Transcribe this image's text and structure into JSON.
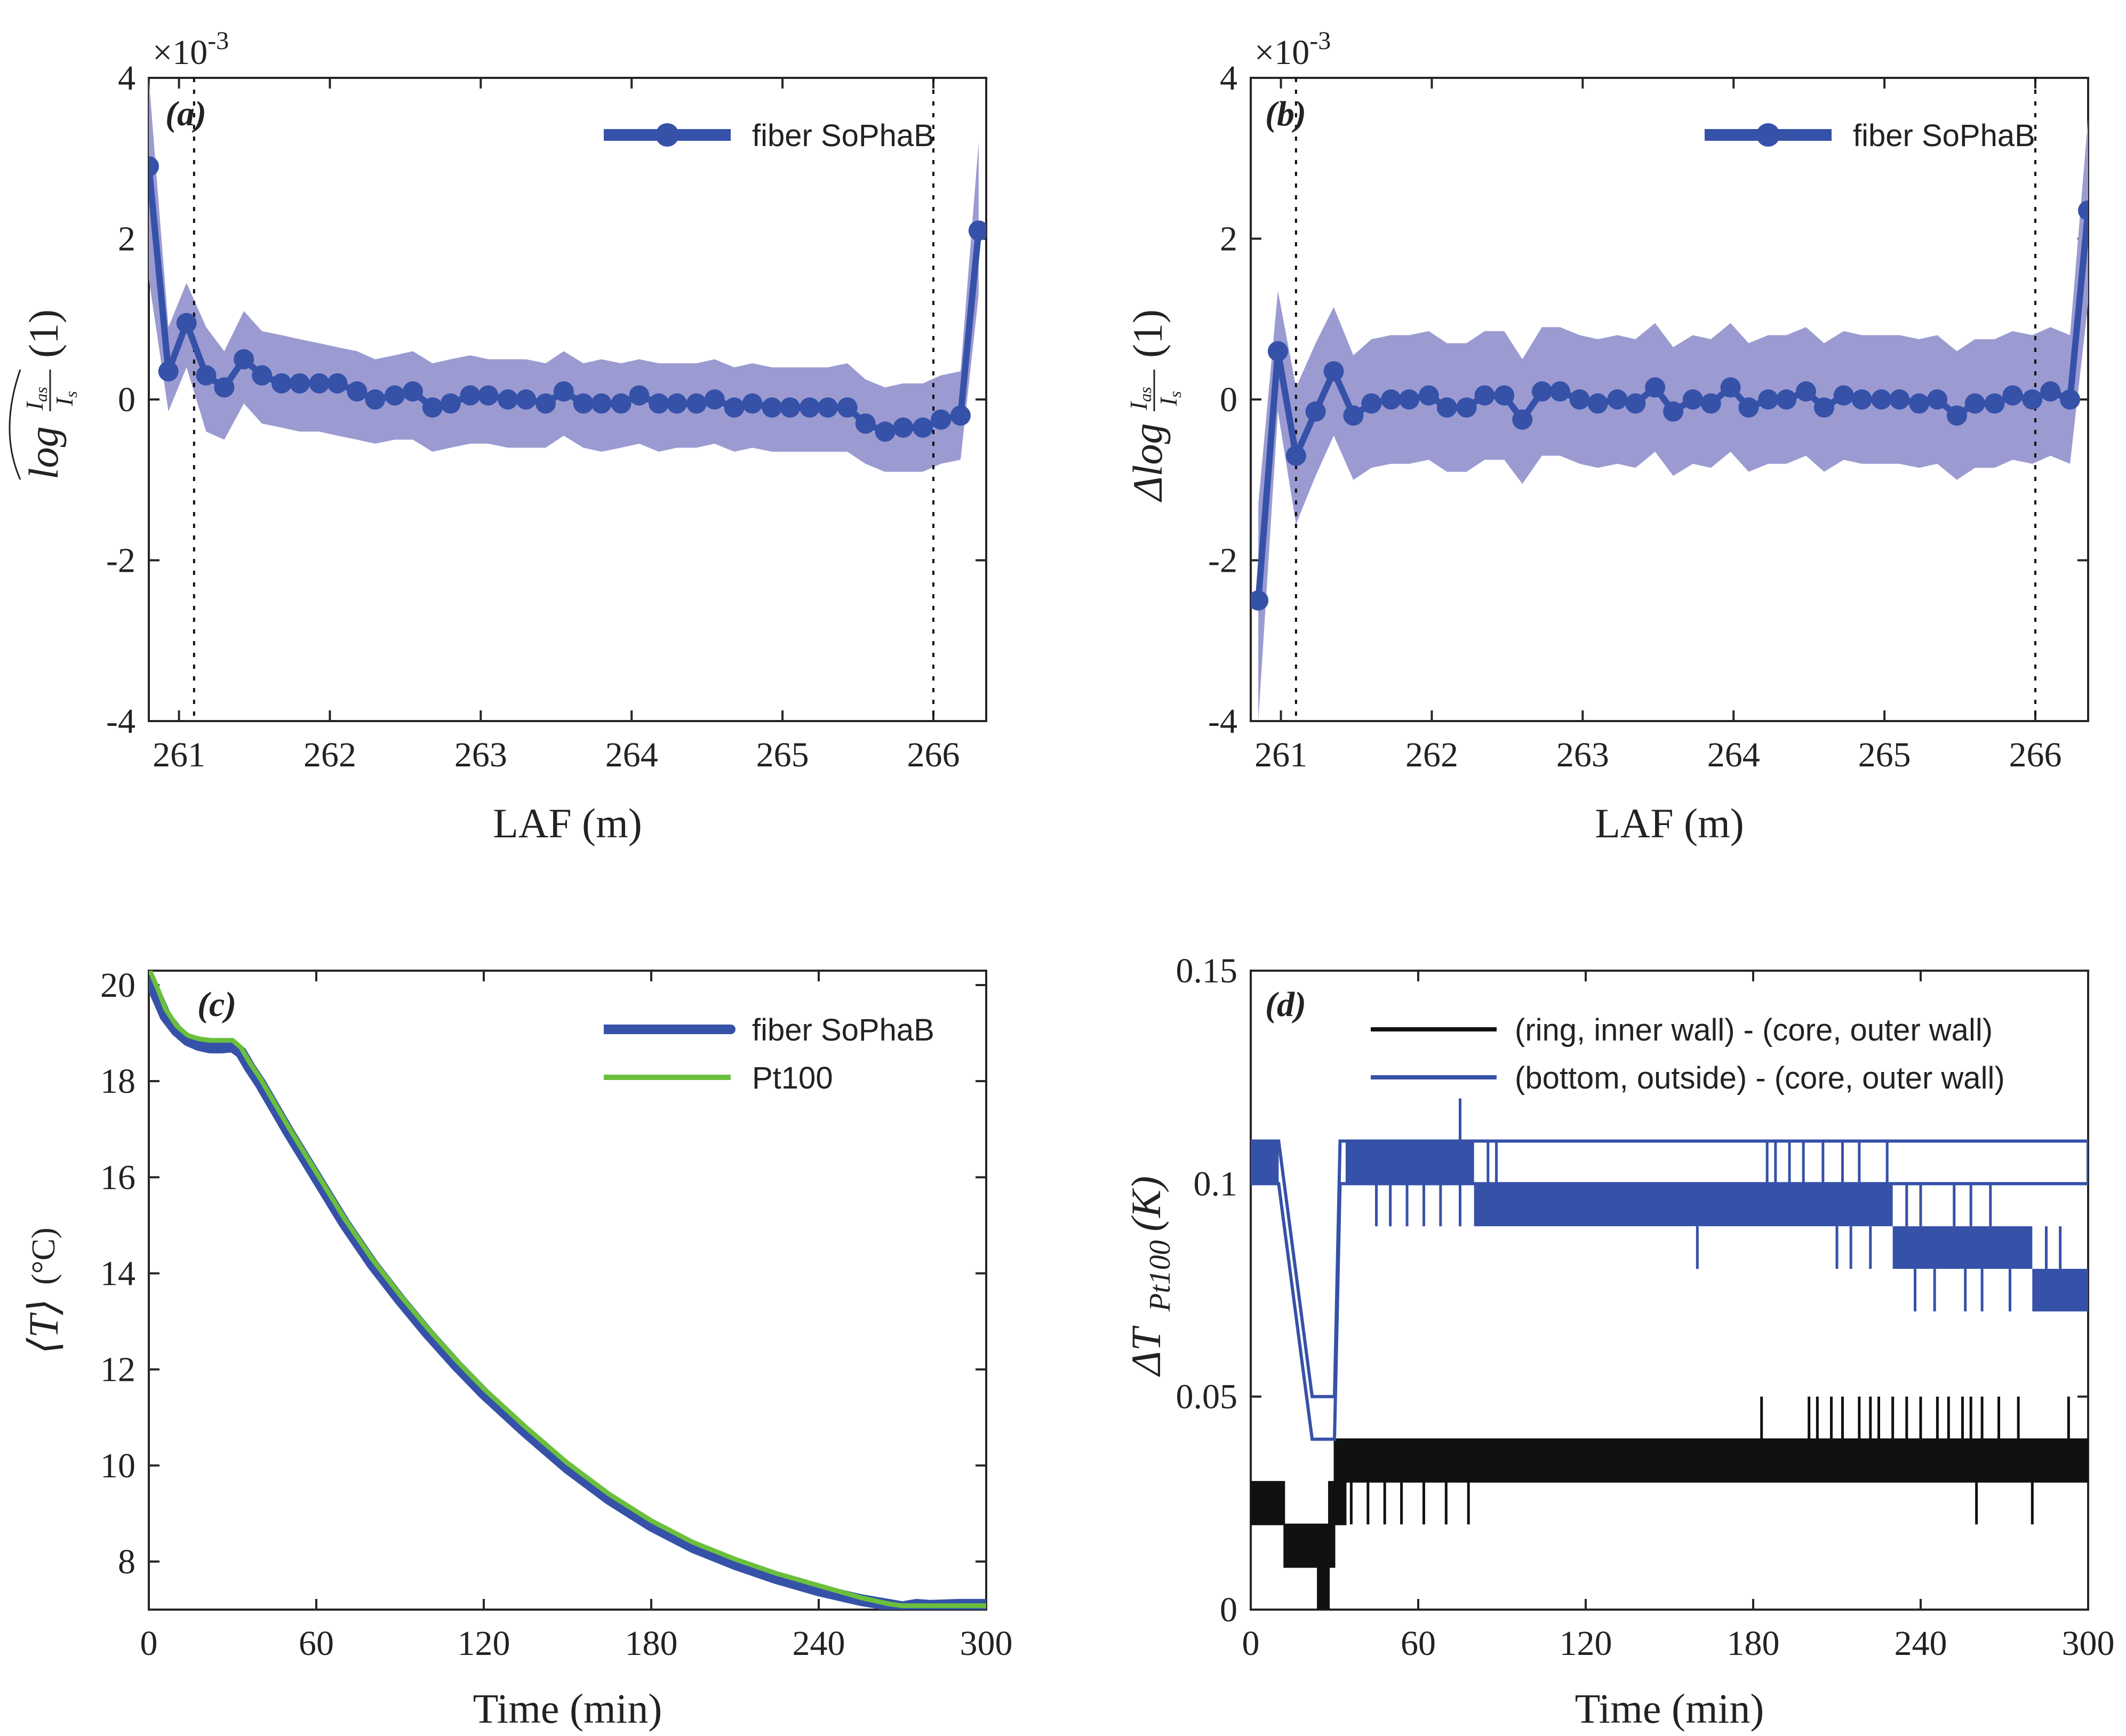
{
  "colors": {
    "fiber": "#3651a8",
    "band": "#9b9bd2",
    "pt100": "#6abf3c",
    "black": "#111111",
    "axis": "#262626"
  },
  "chart_data": [
    {
      "id": "a",
      "type": "line",
      "panel_label": "(a)",
      "xlabel": "LAF (m)",
      "ylabel": "log(I_as / I_s) (1)",
      "ylabel_parts": {
        "base": "log",
        "num": "I",
        "num_sub": "as",
        "den": "I",
        "den_sub": "s",
        "unit": "(1)"
      },
      "exponent_label": "×10",
      "exponent_power": "-3",
      "xlim": [
        260.8,
        266.35
      ],
      "ylim": [
        -4,
        4
      ],
      "xticks": [
        "261",
        "262",
        "263",
        "264",
        "265",
        "266"
      ],
      "yticks": [
        "-4",
        "-2",
        "0",
        "2",
        "4"
      ],
      "vlines": [
        261.1,
        266.0
      ],
      "legend": [
        "fiber SoPhaB"
      ],
      "series": [
        {
          "name": "fiber SoPhaB",
          "x": [
            260.8,
            260.93,
            261.05,
            261.18,
            261.3,
            261.43,
            261.55,
            261.68,
            261.8,
            261.93,
            262.05,
            262.18,
            262.3,
            262.43,
            262.55,
            262.68,
            262.8,
            262.93,
            263.05,
            263.18,
            263.3,
            263.43,
            263.55,
            263.68,
            263.8,
            263.93,
            264.05,
            264.18,
            264.3,
            264.43,
            264.55,
            264.68,
            264.8,
            264.93,
            265.05,
            265.18,
            265.3,
            265.43,
            265.55,
            265.68,
            265.8,
            265.93,
            266.05,
            266.18,
            266.3
          ],
          "values": [
            2.9,
            0.35,
            0.95,
            0.3,
            0.15,
            0.5,
            0.3,
            0.2,
            0.2,
            0.2,
            0.2,
            0.1,
            0.0,
            0.05,
            0.1,
            -0.1,
            -0.05,
            0.05,
            0.05,
            0.0,
            0.0,
            -0.05,
            0.1,
            -0.05,
            -0.05,
            -0.05,
            0.05,
            -0.05,
            -0.05,
            -0.05,
            0.0,
            -0.1,
            -0.05,
            -0.1,
            -0.1,
            -0.1,
            -0.1,
            -0.1,
            -0.3,
            -0.4,
            -0.35,
            -0.35,
            -0.25,
            -0.2,
            2.1
          ],
          "upper": [
            4.0,
            0.9,
            1.45,
            0.9,
            0.6,
            1.1,
            0.85,
            0.8,
            0.75,
            0.7,
            0.65,
            0.6,
            0.5,
            0.55,
            0.6,
            0.45,
            0.5,
            0.55,
            0.5,
            0.5,
            0.5,
            0.45,
            0.6,
            0.45,
            0.5,
            0.45,
            0.5,
            0.45,
            0.45,
            0.45,
            0.5,
            0.4,
            0.45,
            0.4,
            0.4,
            0.4,
            0.4,
            0.45,
            0.25,
            0.15,
            0.2,
            0.2,
            0.3,
            0.35,
            3.2
          ],
          "lower": [
            1.5,
            -0.15,
            0.4,
            -0.4,
            -0.5,
            -0.05,
            -0.3,
            -0.35,
            -0.4,
            -0.4,
            -0.45,
            -0.5,
            -0.55,
            -0.5,
            -0.5,
            -0.65,
            -0.6,
            -0.55,
            -0.55,
            -0.6,
            -0.6,
            -0.6,
            -0.45,
            -0.6,
            -0.65,
            -0.6,
            -0.55,
            -0.65,
            -0.6,
            -0.6,
            -0.55,
            -0.65,
            -0.6,
            -0.65,
            -0.65,
            -0.65,
            -0.65,
            -0.65,
            -0.8,
            -0.9,
            -0.9,
            -0.9,
            -0.8,
            -0.75,
            1.3
          ]
        }
      ]
    },
    {
      "id": "b",
      "type": "line",
      "panel_label": "(b)",
      "xlabel": "LAF (m)",
      "ylabel": "Δlog(I_as / I_s) (1)",
      "ylabel_parts": {
        "base": "Δlog",
        "num": "I",
        "num_sub": "as",
        "den": "I",
        "den_sub": "s",
        "unit": "(1)"
      },
      "exponent_label": "×10",
      "exponent_power": "-3",
      "xlim": [
        260.8,
        266.35
      ],
      "ylim": [
        -4,
        4
      ],
      "xticks": [
        "261",
        "262",
        "263",
        "264",
        "265",
        "266"
      ],
      "yticks": [
        "-4",
        "-2",
        "0",
        "2",
        "4"
      ],
      "vlines": [
        261.1,
        266.0
      ],
      "legend": [
        "fiber SoPhaB"
      ],
      "series": [
        {
          "name": "fiber SoPhaB",
          "x": [
            260.85,
            260.98,
            261.1,
            261.23,
            261.35,
            261.48,
            261.6,
            261.73,
            261.85,
            261.98,
            262.1,
            262.23,
            262.35,
            262.48,
            262.6,
            262.73,
            262.85,
            262.98,
            263.1,
            263.23,
            263.35,
            263.48,
            263.6,
            263.73,
            263.85,
            263.98,
            264.1,
            264.23,
            264.35,
            264.48,
            264.6,
            264.73,
            264.85,
            264.98,
            265.1,
            265.23,
            265.35,
            265.48,
            265.6,
            265.73,
            265.85,
            265.98,
            266.1,
            266.23,
            266.35
          ],
          "values": [
            -2.5,
            0.6,
            -0.7,
            -0.15,
            0.35,
            -0.2,
            -0.05,
            0.0,
            0.0,
            0.05,
            -0.1,
            -0.1,
            0.05,
            0.05,
            -0.25,
            0.1,
            0.1,
            0.0,
            -0.05,
            0.0,
            -0.05,
            0.15,
            -0.15,
            0.0,
            -0.05,
            0.15,
            -0.1,
            0.0,
            0.0,
            0.1,
            -0.1,
            0.05,
            0.0,
            0.0,
            0.0,
            -0.05,
            0.0,
            -0.2,
            -0.05,
            -0.05,
            0.05,
            0.0,
            0.1,
            0.0,
            2.35
          ]
        }
      ],
      "band_upper": [
        -1.3,
        1.35,
        0.15,
        0.7,
        1.15,
        0.55,
        0.75,
        0.8,
        0.8,
        0.85,
        0.7,
        0.7,
        0.85,
        0.85,
        0.5,
        0.9,
        0.9,
        0.8,
        0.75,
        0.8,
        0.75,
        0.95,
        0.65,
        0.8,
        0.75,
        0.95,
        0.7,
        0.8,
        0.8,
        0.9,
        0.7,
        0.85,
        0.8,
        0.8,
        0.8,
        0.75,
        0.8,
        0.6,
        0.75,
        0.75,
        0.85,
        0.8,
        0.9,
        0.8,
        3.5
      ],
      "band_lower": [
        -4.0,
        -0.15,
        -1.55,
        -0.95,
        -0.45,
        -1.0,
        -0.85,
        -0.8,
        -0.8,
        -0.75,
        -0.9,
        -0.9,
        -0.75,
        -0.75,
        -1.05,
        -0.7,
        -0.7,
        -0.8,
        -0.85,
        -0.8,
        -0.85,
        -0.65,
        -0.95,
        -0.8,
        -0.85,
        -0.65,
        -0.9,
        -0.8,
        -0.8,
        -0.7,
        -0.9,
        -0.75,
        -0.8,
        -0.8,
        -0.8,
        -0.85,
        -0.8,
        -1.0,
        -0.85,
        -0.85,
        -0.75,
        -0.8,
        -0.7,
        -0.8,
        1.2
      ]
    },
    {
      "id": "c",
      "type": "line",
      "panel_label": "(c)",
      "xlabel": "Time (min)",
      "ylabel": "⟨T⟩ (°C)",
      "ylabel_main": "⟨T⟩",
      "ylabel_unit": "(°C)",
      "xlim": [
        0,
        300
      ],
      "ylim": [
        7,
        20.3
      ],
      "xticks": [
        "0",
        "60",
        "120",
        "180",
        "240",
        "300"
      ],
      "yticks": [
        "8",
        "10",
        "12",
        "14",
        "16",
        "18",
        "20"
      ],
      "legend": [
        "fiber SoPhaB",
        "Pt100"
      ],
      "series": [
        {
          "name": "fiber SoPhaB",
          "x": [
            0,
            3,
            6,
            10,
            14,
            18,
            22,
            26,
            30,
            33,
            36,
            40,
            45,
            50,
            60,
            70,
            80,
            90,
            100,
            110,
            120,
            135,
            150,
            165,
            180,
            195,
            210,
            225,
            240,
            255,
            265,
            270,
            275,
            280,
            290,
            300
          ],
          "values": [
            20.15,
            19.75,
            19.35,
            19.05,
            18.85,
            18.75,
            18.7,
            18.7,
            18.72,
            18.6,
            18.3,
            17.95,
            17.45,
            16.95,
            16.0,
            15.05,
            14.2,
            13.45,
            12.75,
            12.1,
            11.5,
            10.7,
            9.95,
            9.3,
            8.75,
            8.3,
            7.95,
            7.65,
            7.4,
            7.2,
            7.1,
            7.05,
            7.1,
            7.08,
            7.1,
            7.1
          ]
        },
        {
          "name": "Pt100",
          "x": [
            0,
            3,
            6,
            10,
            14,
            18,
            22,
            26,
            30,
            33,
            36,
            40,
            45,
            50,
            60,
            70,
            80,
            90,
            100,
            110,
            120,
            135,
            150,
            165,
            180,
            195,
            210,
            225,
            240,
            255,
            265,
            270,
            275,
            280,
            290,
            300
          ],
          "values": [
            20.35,
            19.95,
            19.5,
            19.15,
            18.95,
            18.88,
            18.85,
            18.85,
            18.85,
            18.7,
            18.4,
            18.05,
            17.55,
            17.05,
            16.1,
            15.15,
            14.3,
            13.55,
            12.85,
            12.2,
            11.6,
            10.8,
            10.05,
            9.4,
            8.85,
            8.4,
            8.05,
            7.75,
            7.5,
            7.25,
            7.12,
            7.08,
            7.08,
            7.08,
            7.08,
            7.08
          ]
        }
      ]
    },
    {
      "id": "d",
      "type": "line",
      "panel_label": "(d)",
      "xlabel": "Time (min)",
      "ylabel": "ΔT_Pt100 (K)",
      "ylabel_main": "ΔT",
      "ylabel_sub": "Pt100",
      "ylabel_unit": "(K)",
      "xlim": [
        0,
        300
      ],
      "ylim": [
        0,
        0.15
      ],
      "xticks": [
        "0",
        "60",
        "120",
        "180",
        "240",
        "300"
      ],
      "yticks": [
        "0",
        "0.05",
        "0.1",
        "0.15"
      ],
      "legend": [
        "(ring, inner wall) - (core, outer wall)",
        "(bottom, outside) - (core, outer wall)"
      ],
      "series": [
        {
          "name": "(ring, inner wall) - (core, outer wall)",
          "x": [
            0,
            12,
            12,
            24,
            24,
            28,
            28,
            30,
            30,
            34,
            34,
            300
          ],
          "lo": [
            0.02,
            0.02,
            0.01,
            0.01,
            0.0,
            0.0,
            0.01,
            0.01,
            0.02,
            0.02,
            0.03,
            0.03
          ],
          "hi": [
            0.03,
            0.03,
            0.02,
            0.02,
            0.02,
            0.02,
            0.03,
            0.03,
            0.04,
            0.04,
            0.04,
            0.04
          ],
          "spikes_hi": [
            183,
            200,
            203,
            208,
            212,
            218,
            222,
            225,
            230,
            235,
            240,
            246,
            250,
            255,
            258,
            262,
            268,
            275,
            293
          ],
          "spikes_lo": [
            36,
            42,
            48,
            54,
            62,
            70,
            78,
            260,
            280
          ],
          "spike_hi_value": 0.05,
          "spike_lo_value": 0.02
        },
        {
          "name": "(bottom, outside) - (core, outer wall)",
          "x": [
            0,
            10,
            12,
            14,
            16,
            18,
            20,
            22,
            24,
            26,
            28,
            30,
            32,
            34,
            300
          ],
          "lo": [
            0.1,
            0.1,
            0.09,
            0.08,
            0.07,
            0.06,
            0.05,
            0.04,
            0.04,
            0.04,
            0.04,
            0.04,
            0.1,
            0.1,
            0.1
          ],
          "hi": [
            0.11,
            0.11,
            0.1,
            0.09,
            0.08,
            0.07,
            0.06,
            0.05,
            0.05,
            0.05,
            0.05,
            0.05,
            0.11,
            0.11,
            0.11
          ],
          "segments": [
            {
              "x0": 0,
              "x1": 10,
              "lo": 0.1,
              "hi": 0.11
            },
            {
              "x0": 34,
              "x1": 80,
              "lo": 0.1,
              "hi": 0.11
            },
            {
              "x0": 80,
              "x1": 230,
              "lo": 0.09,
              "hi": 0.1
            },
            {
              "x0": 230,
              "x1": 280,
              "lo": 0.08,
              "hi": 0.09
            },
            {
              "x0": 280,
              "x1": 300,
              "lo": 0.07,
              "hi": 0.08
            }
          ],
          "spikes_down": [
            45,
            50,
            56,
            62,
            68,
            75,
            160,
            210,
            215,
            222,
            238,
            245,
            256,
            262,
            272
          ],
          "spikes_up": [
            75,
            85,
            88,
            185,
            188,
            193,
            198,
            205,
            212,
            218,
            228,
            235,
            240,
            252,
            258,
            265,
            285,
            290
          ]
        }
      ]
    }
  ]
}
